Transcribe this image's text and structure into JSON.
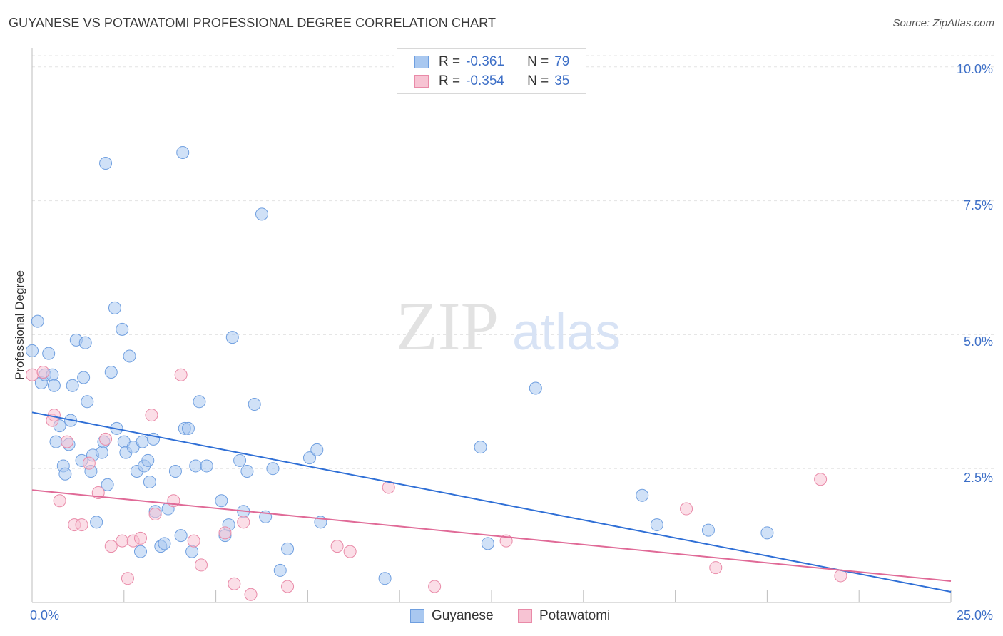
{
  "title": "GUYANESE VS POTAWATOMI PROFESSIONAL DEGREE CORRELATION CHART",
  "source": "Source: ZipAtlas.com",
  "watermark": {
    "zip": "ZIP",
    "atlas": "atlas"
  },
  "legend": {
    "r_label": "R =",
    "n_label": "N =",
    "rows": [
      {
        "r": "-0.361",
        "n": "79",
        "color": "#a9c8f0",
        "border": "#6f9fe0"
      },
      {
        "r": "-0.354",
        "n": "35",
        "color": "#f7c3d3",
        "border": "#e98aa8"
      }
    ]
  },
  "bottom_legend": [
    {
      "label": "Guyanese",
      "color": "#a9c8f0",
      "border": "#6f9fe0"
    },
    {
      "label": "Potawatomi",
      "color": "#f7c3d3",
      "border": "#e98aa8"
    }
  ],
  "axes": {
    "x_min_label": "0.0%",
    "x_max_label": "25.0%",
    "y_tick_labels": [
      "10.0%",
      "7.5%",
      "5.0%",
      "2.5%"
    ]
  },
  "chart_data": {
    "type": "scatter",
    "title": "GUYANESE VS POTAWATOMI PROFESSIONAL DEGREE CORRELATION CHART",
    "xlabel": "",
    "ylabel": "Professional Degree",
    "xlim": [
      0,
      25
    ],
    "ylim": [
      0,
      10.25
    ],
    "yticks": [
      2.5,
      5.0,
      7.5,
      10.0
    ],
    "grid": true,
    "legend_position": "top-center",
    "series": [
      {
        "name": "Guyanese",
        "color": "#a9c8f0",
        "stroke": "#6f9fe0",
        "trend": {
          "x": [
            0,
            25
          ],
          "y": [
            3.55,
            0.2
          ],
          "color": "#2f6fd6"
        },
        "points": [
          [
            0.0,
            4.7
          ],
          [
            0.15,
            5.25
          ],
          [
            0.25,
            4.1
          ],
          [
            0.35,
            4.25
          ],
          [
            0.45,
            4.65
          ],
          [
            0.55,
            4.25
          ],
          [
            0.6,
            4.05
          ],
          [
            0.65,
            3.0
          ],
          [
            0.75,
            3.3
          ],
          [
            0.85,
            2.55
          ],
          [
            0.9,
            2.4
          ],
          [
            1.0,
            2.95
          ],
          [
            1.05,
            3.4
          ],
          [
            1.1,
            4.05
          ],
          [
            1.2,
            4.9
          ],
          [
            1.35,
            2.65
          ],
          [
            1.4,
            4.2
          ],
          [
            1.45,
            4.85
          ],
          [
            1.5,
            3.75
          ],
          [
            1.6,
            2.45
          ],
          [
            1.65,
            2.75
          ],
          [
            1.75,
            1.5
          ],
          [
            1.9,
            2.8
          ],
          [
            1.95,
            3.0
          ],
          [
            2.0,
            8.2
          ],
          [
            2.05,
            2.2
          ],
          [
            2.15,
            4.3
          ],
          [
            2.25,
            5.5
          ],
          [
            2.3,
            3.25
          ],
          [
            2.45,
            5.1
          ],
          [
            2.5,
            3.0
          ],
          [
            2.55,
            2.8
          ],
          [
            2.65,
            4.6
          ],
          [
            2.75,
            2.9
          ],
          [
            2.85,
            2.45
          ],
          [
            2.95,
            0.95
          ],
          [
            3.0,
            3.0
          ],
          [
            3.05,
            2.55
          ],
          [
            3.15,
            2.65
          ],
          [
            3.2,
            2.25
          ],
          [
            3.3,
            3.05
          ],
          [
            3.35,
            1.7
          ],
          [
            3.5,
            1.05
          ],
          [
            3.6,
            1.1
          ],
          [
            3.7,
            1.75
          ],
          [
            3.9,
            2.45
          ],
          [
            4.05,
            1.25
          ],
          [
            4.1,
            8.4
          ],
          [
            4.15,
            3.25
          ],
          [
            4.25,
            3.25
          ],
          [
            4.35,
            0.95
          ],
          [
            4.45,
            2.55
          ],
          [
            4.55,
            3.75
          ],
          [
            4.75,
            2.55
          ],
          [
            5.15,
            1.9
          ],
          [
            5.25,
            1.25
          ],
          [
            5.35,
            1.45
          ],
          [
            5.45,
            4.95
          ],
          [
            5.65,
            2.65
          ],
          [
            5.75,
            1.7
          ],
          [
            5.85,
            2.45
          ],
          [
            6.05,
            3.7
          ],
          [
            6.25,
            7.25
          ],
          [
            6.35,
            1.6
          ],
          [
            6.55,
            2.5
          ],
          [
            6.75,
            0.6
          ],
          [
            6.95,
            1.0
          ],
          [
            7.55,
            2.7
          ],
          [
            7.75,
            2.85
          ],
          [
            7.85,
            1.5
          ],
          [
            9.6,
            0.45
          ],
          [
            12.2,
            2.9
          ],
          [
            12.4,
            1.1
          ],
          [
            13.7,
            4.0
          ],
          [
            16.6,
            2.0
          ],
          [
            17.0,
            1.45
          ],
          [
            18.4,
            1.35
          ],
          [
            20.0,
            1.3
          ]
        ]
      },
      {
        "name": "Potawatomi",
        "color": "#f7c3d3",
        "stroke": "#e98aa8",
        "trend": {
          "x": [
            0,
            25
          ],
          "y": [
            2.1,
            0.4
          ],
          "color": "#e06a97"
        },
        "points": [
          [
            0.0,
            4.25
          ],
          [
            0.3,
            4.3
          ],
          [
            0.55,
            3.4
          ],
          [
            0.6,
            3.5
          ],
          [
            0.75,
            1.9
          ],
          [
            0.95,
            3.0
          ],
          [
            1.15,
            1.45
          ],
          [
            1.35,
            1.45
          ],
          [
            1.55,
            2.6
          ],
          [
            1.8,
            2.05
          ],
          [
            2.0,
            3.05
          ],
          [
            2.15,
            1.05
          ],
          [
            2.45,
            1.15
          ],
          [
            2.6,
            0.45
          ],
          [
            2.75,
            1.15
          ],
          [
            2.95,
            1.2
          ],
          [
            3.25,
            3.5
          ],
          [
            3.35,
            1.65
          ],
          [
            3.85,
            1.9
          ],
          [
            4.05,
            4.25
          ],
          [
            4.4,
            1.15
          ],
          [
            4.6,
            0.7
          ],
          [
            5.25,
            1.3
          ],
          [
            5.5,
            0.35
          ],
          [
            5.75,
            1.5
          ],
          [
            5.95,
            0.15
          ],
          [
            6.95,
            0.3
          ],
          [
            8.3,
            1.05
          ],
          [
            8.65,
            0.95
          ],
          [
            9.7,
            2.15
          ],
          [
            10.95,
            0.3
          ],
          [
            12.9,
            1.15
          ],
          [
            17.8,
            1.75
          ],
          [
            18.6,
            0.65
          ],
          [
            21.45,
            2.3
          ],
          [
            22.0,
            0.5
          ]
        ]
      }
    ]
  }
}
